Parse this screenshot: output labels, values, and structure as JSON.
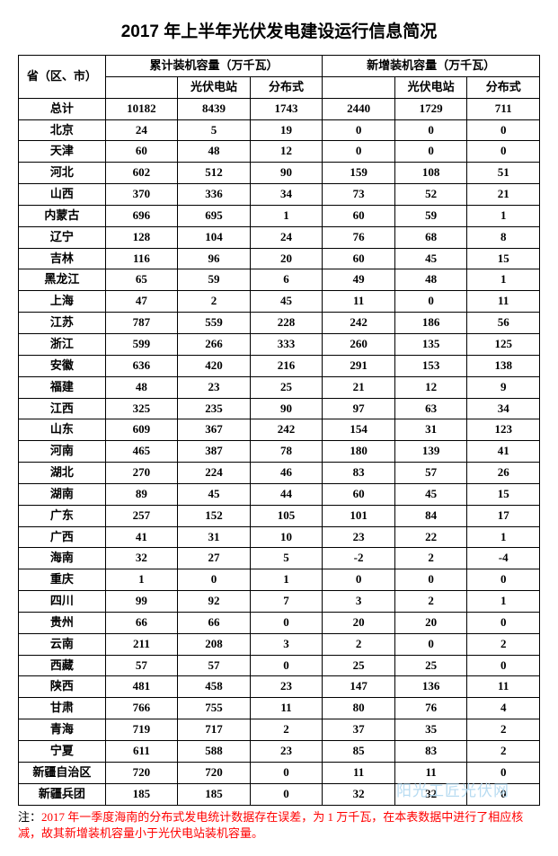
{
  "title": "2017 年上半年光伏发电建设运行信息简况",
  "header": {
    "province": "省（区、市）",
    "group1": "累计装机容量（万千瓦）",
    "group2": "新增装机容量（万千瓦）",
    "sub_station": "光伏电站",
    "sub_dist": "分布式",
    "total_row": "总计"
  },
  "totals": [
    "10182",
    "8439",
    "1743",
    "2440",
    "1729",
    "711"
  ],
  "rows": [
    {
      "p": "北京",
      "v": [
        "24",
        "5",
        "19",
        "0",
        "0",
        "0"
      ]
    },
    {
      "p": "天津",
      "v": [
        "60",
        "48",
        "12",
        "0",
        "0",
        "0"
      ]
    },
    {
      "p": "河北",
      "v": [
        "602",
        "512",
        "90",
        "159",
        "108",
        "51"
      ]
    },
    {
      "p": "山西",
      "v": [
        "370",
        "336",
        "34",
        "73",
        "52",
        "21"
      ]
    },
    {
      "p": "内蒙古",
      "v": [
        "696",
        "695",
        "1",
        "60",
        "59",
        "1"
      ]
    },
    {
      "p": "辽宁",
      "v": [
        "128",
        "104",
        "24",
        "76",
        "68",
        "8"
      ]
    },
    {
      "p": "吉林",
      "v": [
        "116",
        "96",
        "20",
        "60",
        "45",
        "15"
      ]
    },
    {
      "p": "黑龙江",
      "v": [
        "65",
        "59",
        "6",
        "49",
        "48",
        "1"
      ]
    },
    {
      "p": "上海",
      "v": [
        "47",
        "2",
        "45",
        "11",
        "0",
        "11"
      ]
    },
    {
      "p": "江苏",
      "v": [
        "787",
        "559",
        "228",
        "242",
        "186",
        "56"
      ]
    },
    {
      "p": "浙江",
      "v": [
        "599",
        "266",
        "333",
        "260",
        "135",
        "125"
      ]
    },
    {
      "p": "安徽",
      "v": [
        "636",
        "420",
        "216",
        "291",
        "153",
        "138"
      ]
    },
    {
      "p": "福建",
      "v": [
        "48",
        "23",
        "25",
        "21",
        "12",
        "9"
      ]
    },
    {
      "p": "江西",
      "v": [
        "325",
        "235",
        "90",
        "97",
        "63",
        "34"
      ]
    },
    {
      "p": "山东",
      "v": [
        "609",
        "367",
        "242",
        "154",
        "31",
        "123"
      ]
    },
    {
      "p": "河南",
      "v": [
        "465",
        "387",
        "78",
        "180",
        "139",
        "41"
      ]
    },
    {
      "p": "湖北",
      "v": [
        "270",
        "224",
        "46",
        "83",
        "57",
        "26"
      ]
    },
    {
      "p": "湖南",
      "v": [
        "89",
        "45",
        "44",
        "60",
        "45",
        "15"
      ]
    },
    {
      "p": "广东",
      "v": [
        "257",
        "152",
        "105",
        "101",
        "84",
        "17"
      ]
    },
    {
      "p": "广西",
      "v": [
        "41",
        "31",
        "10",
        "23",
        "22",
        "1"
      ]
    },
    {
      "p": "海南",
      "v": [
        "32",
        "27",
        "5",
        "-2",
        "2",
        "-4"
      ]
    },
    {
      "p": "重庆",
      "v": [
        "1",
        "0",
        "1",
        "0",
        "0",
        "0"
      ]
    },
    {
      "p": "四川",
      "v": [
        "99",
        "92",
        "7",
        "3",
        "2",
        "1"
      ]
    },
    {
      "p": "贵州",
      "v": [
        "66",
        "66",
        "0",
        "20",
        "20",
        "0"
      ]
    },
    {
      "p": "云南",
      "v": [
        "211",
        "208",
        "3",
        "2",
        "0",
        "2"
      ]
    },
    {
      "p": "西藏",
      "v": [
        "57",
        "57",
        "0",
        "25",
        "25",
        "0"
      ]
    },
    {
      "p": "陕西",
      "v": [
        "481",
        "458",
        "23",
        "147",
        "136",
        "11"
      ]
    },
    {
      "p": "甘肃",
      "v": [
        "766",
        "755",
        "11",
        "80",
        "76",
        "4"
      ]
    },
    {
      "p": "青海",
      "v": [
        "719",
        "717",
        "2",
        "37",
        "35",
        "2"
      ]
    },
    {
      "p": "宁夏",
      "v": [
        "611",
        "588",
        "23",
        "85",
        "83",
        "2"
      ]
    },
    {
      "p": "新疆自治区",
      "v": [
        "720",
        "720",
        "0",
        "11",
        "11",
        "0"
      ]
    },
    {
      "p": "新疆兵团",
      "v": [
        "185",
        "185",
        "0",
        "32",
        "32",
        "0"
      ]
    }
  ],
  "footnote": {
    "prefix": "注：",
    "red": "2017 年一季度海南的分布式发电统计数据存在误差，为 1 万千瓦，在本表数据中进行了相应核减，故其新增装机容量小于光伏电站装机容量。"
  },
  "watermark": "阳光工匠光伏网",
  "colors": {
    "text": "#000000",
    "border": "#000000",
    "footnote_red": "#ff0000",
    "watermark": "#b0d8f0",
    "background": "#ffffff"
  }
}
